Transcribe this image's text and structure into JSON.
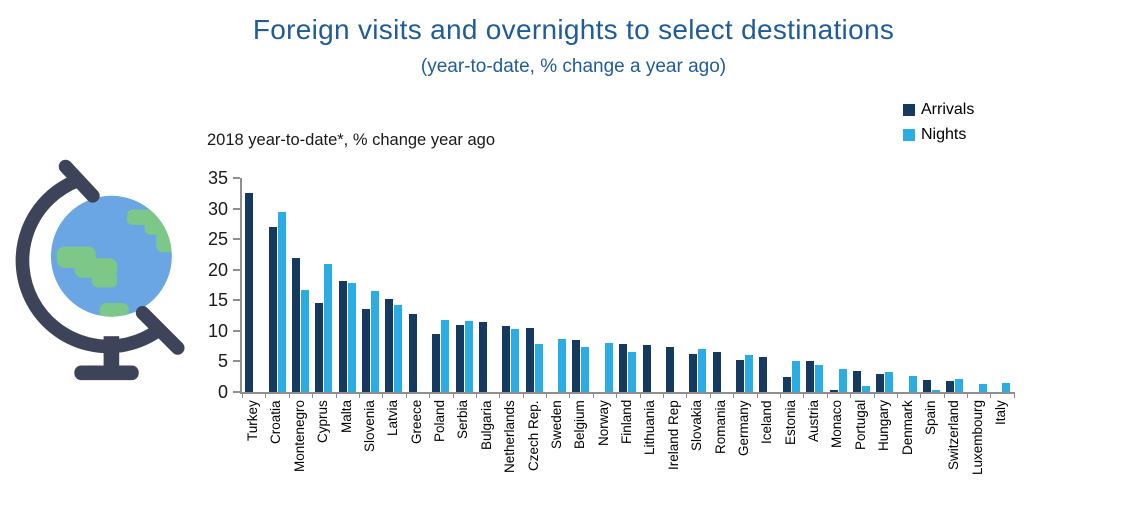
{
  "title": "Foreign visits and overnights to select destinations",
  "subtitle": "(year-to-date, % change a year ago)",
  "axis_title": "2018 year-to-date*, % change year ago",
  "legend": {
    "arrivals": "Arrivals",
    "nights": "Nights"
  },
  "colors": {
    "title_blue": "#1f5c99",
    "arrivals_navy": "#16395f",
    "nights_cyan": "#2bace2",
    "axis_gray": "#8f8f8f",
    "globe_stand": "#3d4359",
    "globe_sea": "#6aa6e3",
    "globe_land": "#7dc788"
  },
  "chart_data": {
    "type": "bar",
    "title": "2018 year-to-date*, % change year ago",
    "xlabel": "",
    "ylabel": "% change year ago",
    "ylim": [
      0,
      35
    ],
    "yticks": [
      0,
      5,
      10,
      15,
      20,
      25,
      30,
      35
    ],
    "grid": false,
    "legend_position": "top-right",
    "categories": [
      "Turkey",
      "Croatia",
      "Montenegro",
      "Cyprus",
      "Malta",
      "Slovenia",
      "Latvia",
      "Greece",
      "Poland",
      "Serbia",
      "Bulgaria",
      "Netherlands",
      "Czech Rep.",
      "Sweden",
      "Belgium",
      "Norway",
      "Finland",
      "Lithuania",
      "Ireland Rep",
      "Slovakia",
      "Romania",
      "Germany",
      "Iceland",
      "Estonia",
      "Austria",
      "Monaco",
      "Portugal",
      "Hungary",
      "Denmark",
      "Spain",
      "Switzerland",
      "Luxembourg",
      "Italy"
    ],
    "series": [
      {
        "name": "Arrivals",
        "color": "#16395f",
        "values": [
          32.5,
          27,
          22,
          14.5,
          18.1,
          13.6,
          15.2,
          12.8,
          9.5,
          11,
          11.5,
          10.8,
          10.5,
          null,
          8.5,
          null,
          7.9,
          7.7,
          7.4,
          6.3,
          6.5,
          5.2,
          5.7,
          2.5,
          5,
          0.4,
          3.5,
          3,
          null,
          2,
          1.8,
          null,
          null
        ]
      },
      {
        "name": "Nights",
        "color": "#2bace2",
        "values": [
          null,
          29.5,
          16.7,
          21,
          17.9,
          16.5,
          14.3,
          null,
          11.8,
          11.7,
          null,
          10.3,
          7.8,
          8.6,
          7.3,
          8,
          6.6,
          null,
          null,
          7,
          null,
          6,
          null,
          5,
          4.5,
          3.8,
          1,
          3.2,
          2.7,
          0.3,
          2.2,
          1.3,
          1.4
        ]
      }
    ]
  }
}
